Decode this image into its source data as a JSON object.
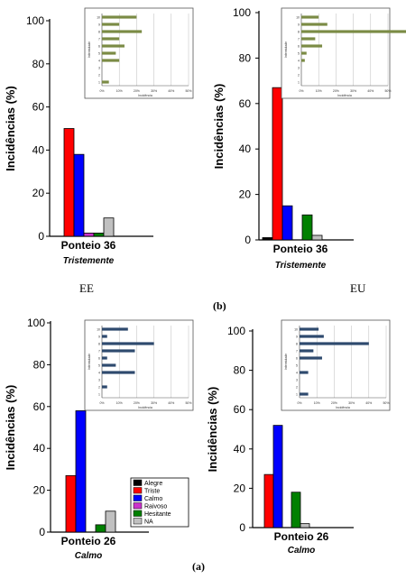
{
  "captions": {
    "ee": "EE",
    "eu": "EU",
    "b": "(b)",
    "a": "(a)"
  },
  "legend": [
    {
      "label": "Alegre",
      "color": "#000000"
    },
    {
      "label": "Triste",
      "color": "#ff0000"
    },
    {
      "label": "Calmo",
      "color": "#0000ff"
    },
    {
      "label": "Raivoso",
      "color": "#cc33cc"
    },
    {
      "label": "Hesitante",
      "color": "#008000"
    },
    {
      "label": "NA",
      "color": "#c0c0c0"
    }
  ],
  "chart_data": [
    {
      "id": "top-left",
      "type": "bar",
      "ylabel": "Incidências (%)",
      "categories": [
        "Alegre",
        "Triste",
        "Calmo",
        "Raivoso",
        "Hesitante",
        "NA"
      ],
      "values": [
        0,
        50,
        38,
        1.5,
        1.5,
        8.5
      ],
      "ylim": [
        0,
        100
      ],
      "yticks": [
        0,
        20,
        40,
        60,
        80,
        100
      ],
      "xtick": "Ponteio 36",
      "subtitle": "Tristemente",
      "inset": {
        "type": "bar-horizontal",
        "ylabel": "Intensidade",
        "xlabel": "Incidência",
        "yticks": [
          "10",
          "9",
          "8",
          "7",
          "6",
          "5",
          "4",
          "3",
          "2",
          "1"
        ],
        "xticks": [
          "0%",
          "10%",
          "20%",
          "30%",
          "40%",
          "50%"
        ],
        "values": [
          20,
          10,
          23,
          10,
          13,
          8,
          10,
          0,
          0,
          4
        ],
        "color": "#7b8b45"
      }
    },
    {
      "id": "top-right",
      "type": "bar",
      "ylabel": "Incidências (%)",
      "categories": [
        "Alegre",
        "Triste",
        "Calmo",
        "Raivoso",
        "Hesitante",
        "NA"
      ],
      "values": [
        1,
        67,
        15,
        0,
        11,
        2
      ],
      "ylim": [
        0,
        100
      ],
      "yticks": [
        0,
        20,
        40,
        60,
        80,
        100
      ],
      "xtick": "Ponteio 36",
      "subtitle": "Tristemente",
      "inset": {
        "type": "bar-horizontal",
        "ylabel": "Intensidade",
        "xlabel": "Incidência",
        "yticks": [
          "10",
          "9",
          "8",
          "7",
          "6",
          "5",
          "4",
          "3",
          "2",
          "1"
        ],
        "xticks": [
          "0%",
          "10%",
          "20%",
          "30%",
          "40%",
          "50%"
        ],
        "values": [
          10,
          15,
          63,
          8,
          12,
          3,
          2,
          0,
          0,
          0
        ],
        "color": "#7b8b45"
      }
    },
    {
      "id": "bottom-left",
      "type": "bar",
      "ylabel": "Incidências (%)",
      "categories": [
        "Alegre",
        "Triste",
        "Calmo",
        "Raivoso",
        "Hesitante",
        "NA"
      ],
      "values": [
        0,
        27,
        58,
        0,
        3.5,
        10
      ],
      "ylim": [
        0,
        100
      ],
      "yticks": [
        0,
        20,
        40,
        60,
        80,
        100
      ],
      "xtick": "Ponteio 26",
      "subtitle": "Calmo",
      "inset": {
        "type": "bar-horizontal",
        "ylabel": "Intensidade",
        "xlabel": "Incidência",
        "yticks": [
          "10",
          "9",
          "8",
          "7",
          "6",
          "5",
          "4",
          "3",
          "2",
          "1"
        ],
        "xticks": [
          "0%",
          "10%",
          "20%",
          "30%",
          "40%",
          "50%"
        ],
        "values": [
          15,
          3,
          30,
          19,
          3,
          8,
          19,
          0,
          3,
          0
        ],
        "color": "#2e4a6e"
      }
    },
    {
      "id": "bottom-right",
      "type": "bar",
      "ylabel": "Incidências (%)",
      "categories": [
        "Alegre",
        "Triste",
        "Calmo",
        "Raivoso",
        "Hesitante",
        "NA"
      ],
      "values": [
        0,
        27,
        52,
        0,
        18,
        2
      ],
      "ylim": [
        0,
        100
      ],
      "yticks": [
        0,
        20,
        40,
        60,
        80,
        100
      ],
      "xtick": "Ponteio 26",
      "subtitle": "Calmo",
      "inset": {
        "type": "bar-horizontal",
        "ylabel": "Intensidade",
        "xlabel": "Incidência",
        "yticks": [
          "10",
          "9",
          "8",
          "7",
          "6",
          "5",
          "4",
          "3",
          "2",
          "1"
        ],
        "xticks": [
          "0%",
          "10%",
          "20%",
          "30%",
          "40%",
          "50%"
        ],
        "values": [
          11,
          14,
          40,
          8,
          13,
          0,
          5,
          0,
          0,
          5
        ],
        "color": "#2e4a6e"
      }
    }
  ]
}
